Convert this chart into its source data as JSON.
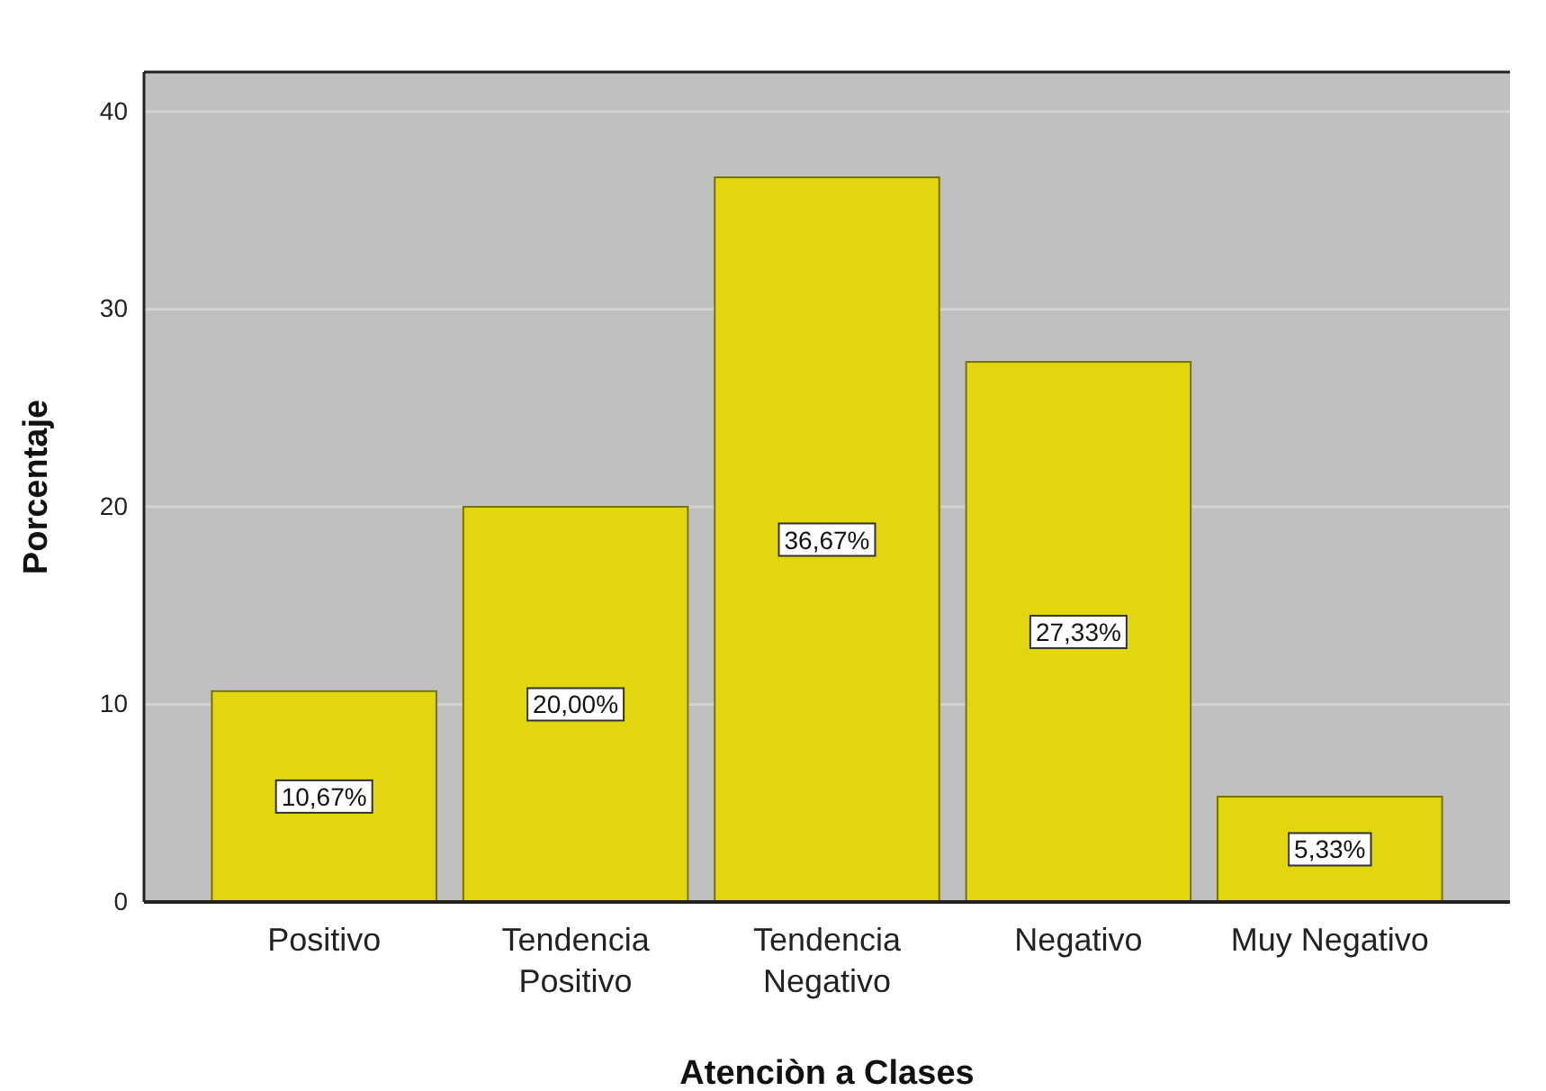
{
  "chart_data": {
    "type": "bar",
    "xlabel": "Atenciòn a Clases",
    "ylabel": "Porcentaje",
    "categories": [
      "Positivo",
      "Tendencia Positivo",
      "Tendencia Negativo",
      "Negativo",
      "Muy Negativo"
    ],
    "values": [
      10.67,
      20.0,
      36.67,
      27.33,
      5.33
    ],
    "value_labels": [
      "10,67%",
      "20,00%",
      "36,67%",
      "27,33%",
      "5,33%"
    ],
    "color": "#e2d60f",
    "ylim": [
      0,
      42
    ],
    "yticks": [
      0,
      10,
      20,
      30,
      40
    ],
    "grid": "y"
  }
}
